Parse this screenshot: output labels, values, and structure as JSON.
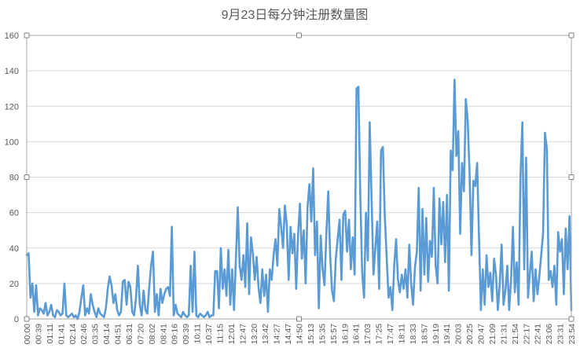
{
  "chart_data": {
    "type": "line",
    "title": "9月23日每分钟注册数量图",
    "xlabel": "",
    "ylabel": "",
    "ylim": [
      0,
      160
    ],
    "yticks": [
      0,
      20,
      40,
      60,
      80,
      100,
      120,
      140,
      160
    ],
    "grid": true,
    "legend": "none",
    "x_tick_labels": [
      "00:00",
      "00:39",
      "01:11",
      "01:41",
      "02:14",
      "02:46",
      "03:35",
      "04:14",
      "04:51",
      "06:31",
      "07:20",
      "08:02",
      "08:41",
      "09:16",
      "09:39",
      "10:11",
      "10:37",
      "11:15",
      "12:01",
      "12:47",
      "13:20",
      "13:42",
      "14:27",
      "14:47",
      "14:50",
      "15:13",
      "15:35",
      "15:57",
      "16:19",
      "16:41",
      "17:03",
      "17:25",
      "17:47",
      "18:11",
      "18:33",
      "18:57",
      "19:19",
      "19:41",
      "20:03",
      "20:25",
      "20:47",
      "21:09",
      "21:31",
      "21:54",
      "22:17",
      "22:41",
      "23:06",
      "23:31",
      "23:54"
    ],
    "series": [
      {
        "color": "#5b9bd5",
        "values": [
          36,
          37,
          12,
          20,
          4,
          19,
          2,
          6,
          5,
          3,
          9,
          2,
          4,
          8,
          2,
          1,
          5,
          4,
          2,
          3,
          20,
          2,
          1,
          2,
          3,
          1,
          2,
          0,
          4,
          12,
          19,
          2,
          6,
          3,
          14,
          8,
          4,
          1,
          6,
          3,
          2,
          1,
          6,
          17,
          24,
          19,
          9,
          14,
          5,
          2,
          4,
          21,
          22,
          8,
          21,
          18,
          4,
          2,
          12,
          30,
          8,
          2,
          16,
          5,
          3,
          18,
          30,
          38,
          4,
          14,
          2,
          17,
          9,
          14,
          17,
          18,
          13,
          52,
          2,
          8,
          3,
          2,
          1,
          4,
          2,
          1,
          2,
          30,
          4,
          38,
          2,
          1,
          3,
          2,
          1,
          2,
          4,
          1,
          2,
          2,
          27,
          27,
          6,
          40,
          17,
          28,
          13,
          39,
          8,
          28,
          5,
          34,
          63,
          30,
          22,
          36,
          18,
          54,
          14,
          46,
          37,
          22,
          35,
          18,
          9,
          28,
          13,
          25,
          4,
          28,
          22,
          36,
          45,
          30,
          62,
          52,
          40,
          64,
          53,
          22,
          52,
          37,
          48,
          17,
          48,
          65,
          34,
          50,
          20,
          63,
          76,
          55,
          85,
          36,
          55,
          6,
          47,
          28,
          19,
          48,
          72,
          36,
          16,
          10,
          34,
          45,
          56,
          22,
          59,
          61,
          38,
          56,
          28,
          46,
          25,
          130,
          131,
          70,
          26,
          12,
          60,
          33,
          111,
          68,
          25,
          40,
          55,
          17,
          95,
          97,
          58,
          35,
          12,
          18,
          5,
          30,
          45,
          22,
          15,
          25,
          17,
          28,
          12,
          42,
          20,
          8,
          29,
          38,
          74,
          16,
          62,
          25,
          57,
          21,
          44,
          35,
          74,
          30,
          20,
          68,
          42,
          66,
          32,
          70,
          16,
          95,
          84,
          135,
          92,
          106,
          48,
          88,
          72,
          124,
          112,
          82,
          36,
          78,
          75,
          88,
          46,
          5,
          28,
          8,
          36,
          18,
          26,
          10,
          34,
          25,
          5,
          20,
          42,
          8,
          16,
          30,
          5,
          22,
          52,
          15,
          32,
          8,
          80,
          111,
          28,
          91,
          12,
          26,
          38,
          10,
          28,
          14,
          24,
          36,
          48,
          105,
          96,
          22,
          27,
          18,
          30,
          8,
          49,
          38,
          45,
          14,
          51,
          28,
          58,
          5
        ]
      }
    ]
  }
}
